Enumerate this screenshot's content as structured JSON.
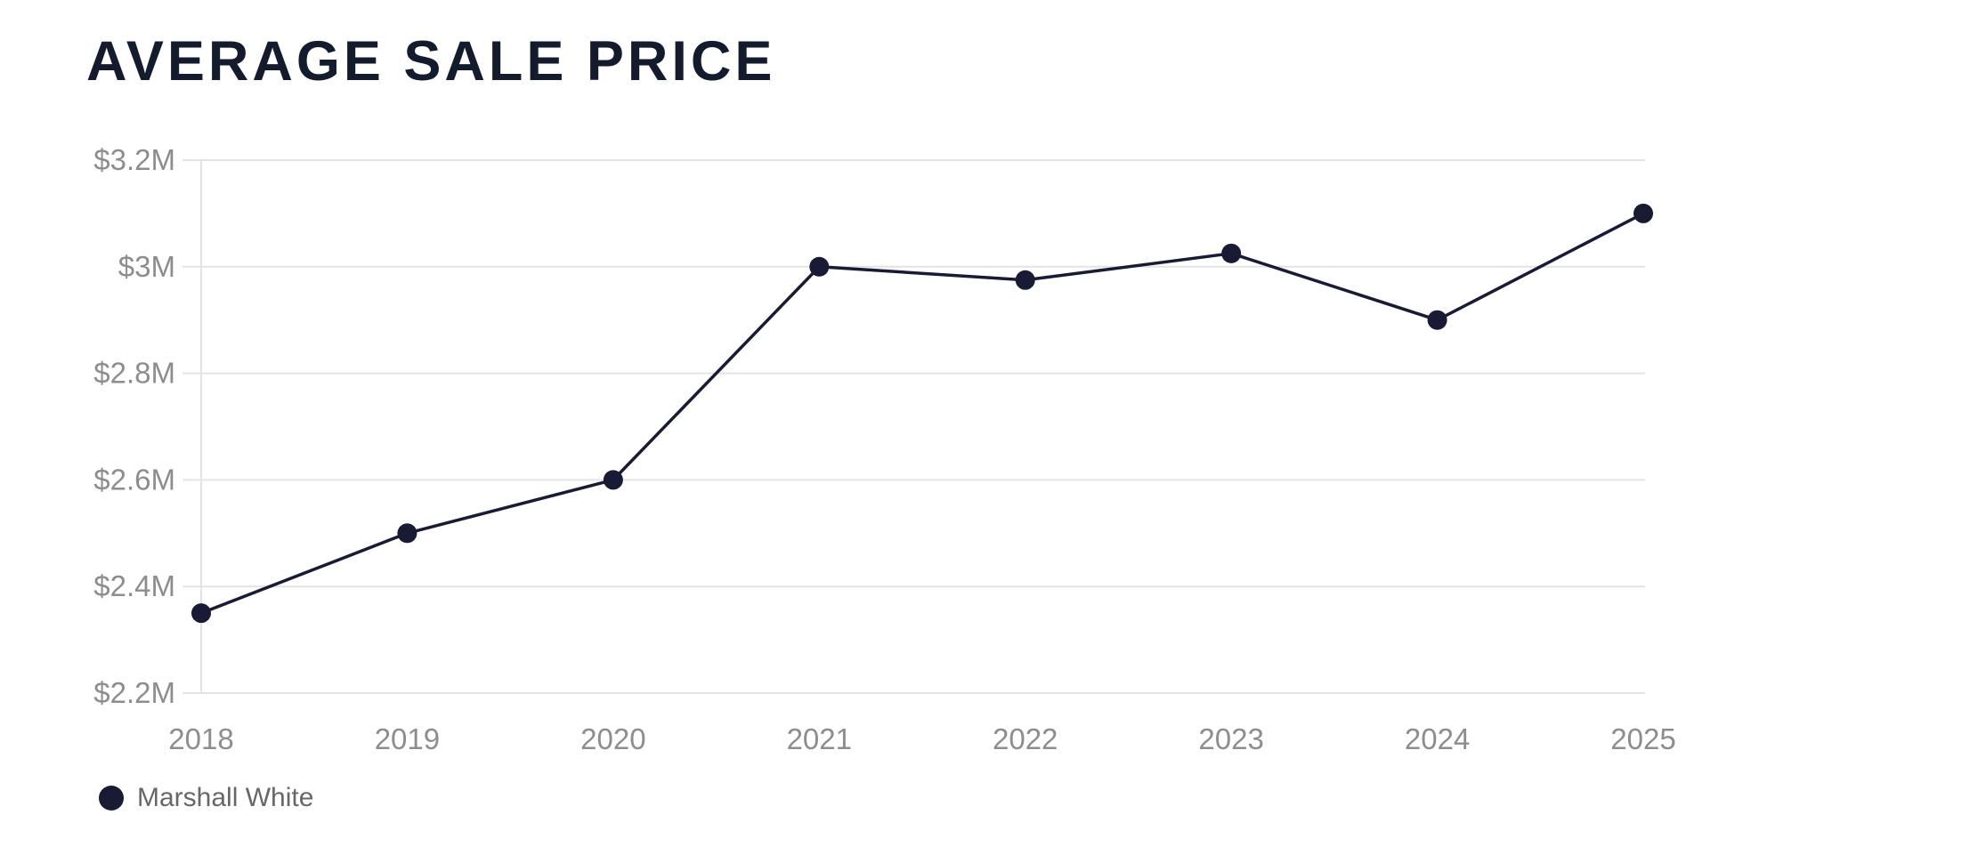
{
  "header": {
    "title": "AVERAGE SALE PRICE"
  },
  "chart_data": {
    "type": "line",
    "title": "AVERAGE SALE PRICE",
    "categories": [
      "2018",
      "2019",
      "2020",
      "2021",
      "2022",
      "2023",
      "2024",
      "2025"
    ],
    "series": [
      {
        "name": "Marshall White",
        "values": [
          2.35,
          2.5,
          2.6,
          3.0,
          2.975,
          3.025,
          2.9,
          3.1
        ],
        "color": "#191a33"
      }
    ],
    "y_ticks": [
      {
        "label": "$3.2M",
        "value": 3.2
      },
      {
        "label": "$3M",
        "value": 3.0
      },
      {
        "label": "$2.8M",
        "value": 2.8
      },
      {
        "label": "$2.6M",
        "value": 2.6
      },
      {
        "label": "$2.4M",
        "value": 2.4
      },
      {
        "label": "$2.2M",
        "value": 2.2
      }
    ],
    "ylim": [
      2.2,
      3.2
    ],
    "xlabel": "",
    "ylabel": "",
    "grid": "horizontal",
    "legend_position": "bottom-left",
    "colors": {
      "line": "#191a33",
      "point": "#191a33",
      "grid": "#e3e3e6",
      "axis": "#e3e3e6",
      "tick_label": "#8d8d8d",
      "title": "#141b2c",
      "legend_text": "#66676b",
      "background": "#ffffff"
    }
  }
}
